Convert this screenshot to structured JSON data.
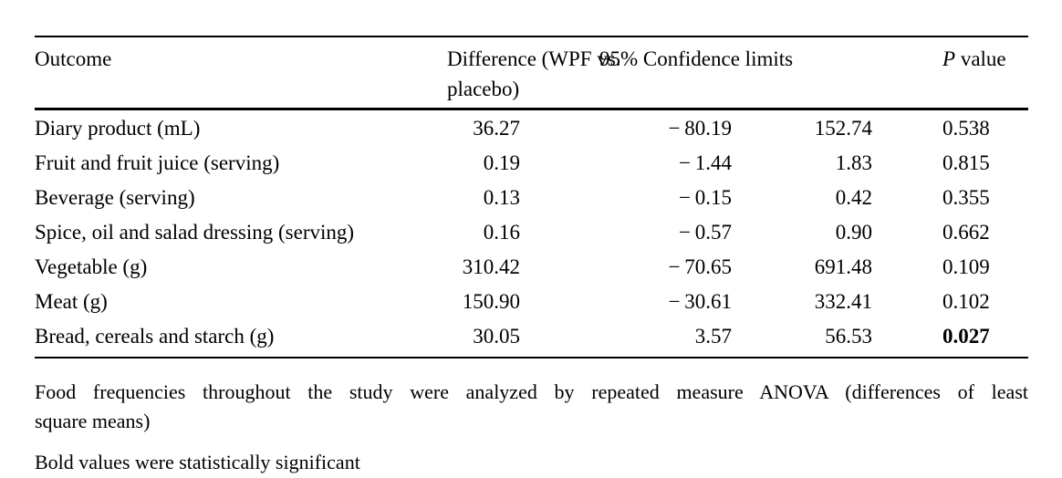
{
  "colors": {
    "background": "#ffffff",
    "text": "#000000",
    "rule": "#000000"
  },
  "table": {
    "header": {
      "outcome": "Outcome",
      "difference_line1": "Difference (WPF vs.",
      "difference_line2": "placebo)",
      "confidence": "95% Confidence limits",
      "p_italic": "P",
      "p_rest": " value"
    },
    "rows": [
      {
        "outcome": "Diary product (mL)",
        "difference": "36.27",
        "ci_lower": "− 80.19",
        "ci_upper": "152.74",
        "p_value": "0.538",
        "p_bold": false
      },
      {
        "outcome": "Fruit and fruit juice (serving)",
        "difference": "0.19",
        "ci_lower": "− 1.44",
        "ci_upper": "1.83",
        "p_value": "0.815",
        "p_bold": false
      },
      {
        "outcome": "Beverage (serving)",
        "difference": "0.13",
        "ci_lower": "− 0.15",
        "ci_upper": "0.42",
        "p_value": "0.355",
        "p_bold": false
      },
      {
        "outcome": "Spice, oil and salad dressing (serving)",
        "difference": "0.16",
        "ci_lower": "− 0.57",
        "ci_upper": "0.90",
        "p_value": "0.662",
        "p_bold": false
      },
      {
        "outcome": "Vegetable (g)",
        "difference": "310.42",
        "ci_lower": "− 70.65",
        "ci_upper": "691.48",
        "p_value": "0.109",
        "p_bold": false
      },
      {
        "outcome": "Meat (g)",
        "difference": "150.90",
        "ci_lower": "− 30.61",
        "ci_upper": "332.41",
        "p_value": "0.102",
        "p_bold": false
      },
      {
        "outcome": "Bread, cereals and starch (g)",
        "difference": "30.05",
        "ci_lower": "3.57",
        "ci_upper": "56.53",
        "p_value": "0.027",
        "p_bold": true
      }
    ]
  },
  "footnotes": {
    "anova_line1": "Food frequencies throughout the study were analyzed by repeated measure ANOVA (differences of least",
    "anova_line2": "square means)",
    "significance": "Bold values were statistically significant"
  }
}
